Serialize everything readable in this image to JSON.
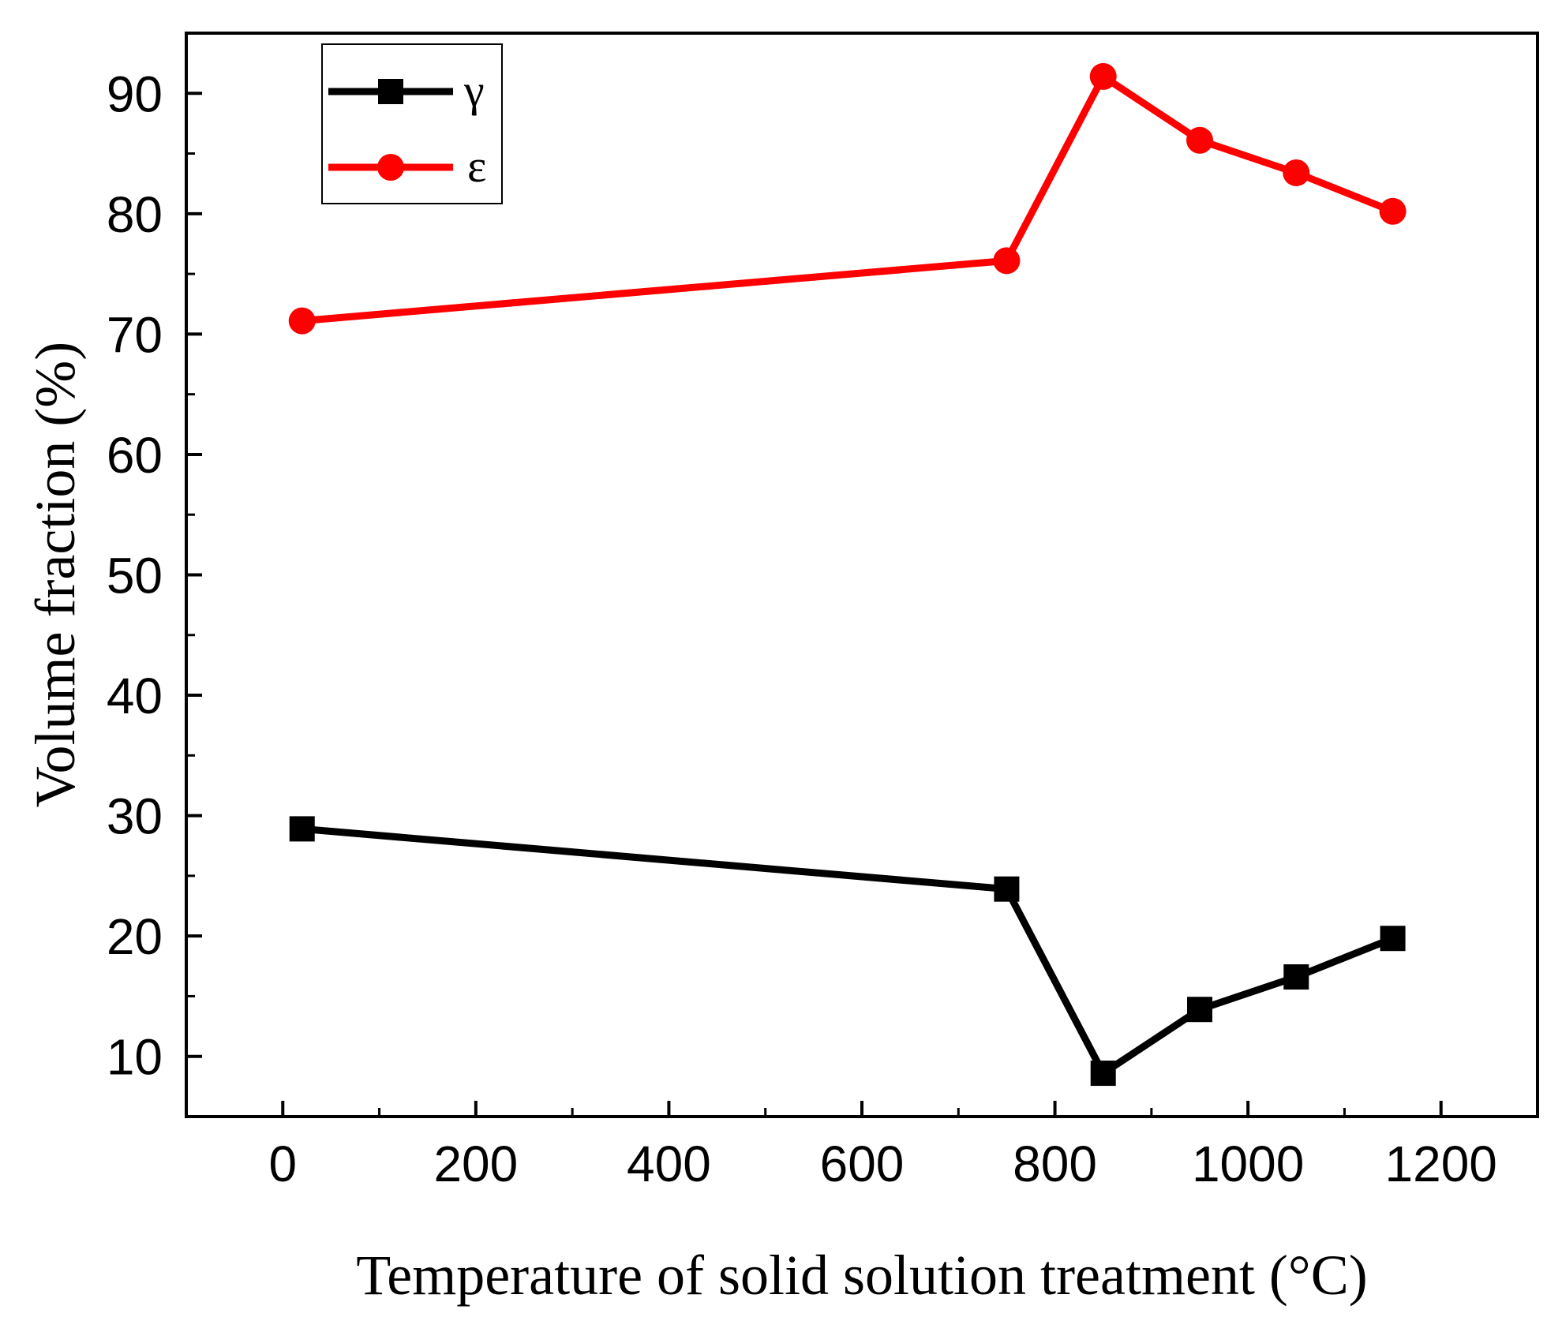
{
  "chart_data": {
    "type": "line",
    "title": "",
    "xlabel": "Temperature of solid solution treatment (°C)",
    "ylabel": "Volume fraction (%)",
    "xlim": [
      -100,
      1300
    ],
    "ylim": [
      5,
      95
    ],
    "xticks": [
      0,
      200,
      400,
      600,
      800,
      1000,
      1200
    ],
    "xtick_labels": [
      "0",
      "200",
      "400",
      "600",
      "800",
      "1000",
      "1200"
    ],
    "yticks": [
      10,
      20,
      30,
      40,
      50,
      60,
      70,
      80,
      90
    ],
    "ytick_labels": [
      "10",
      "20",
      "30",
      "40",
      "50",
      "60",
      "70",
      "80",
      "90"
    ],
    "grid": false,
    "legend_position": "top-left",
    "series": [
      {
        "name": "γ",
        "color": "#000000",
        "marker": "square",
        "x": [
          20,
          750,
          850,
          950,
          1050,
          1150
        ],
        "y": [
          28.9,
          23.9,
          8.6,
          13.9,
          16.6,
          19.8
        ]
      },
      {
        "name": "ε",
        "color": "#ff0000",
        "marker": "circle",
        "x": [
          20,
          750,
          850,
          950,
          1050,
          1150
        ],
        "y": [
          71.1,
          76.1,
          91.4,
          86.1,
          83.4,
          80.2
        ]
      }
    ]
  }
}
